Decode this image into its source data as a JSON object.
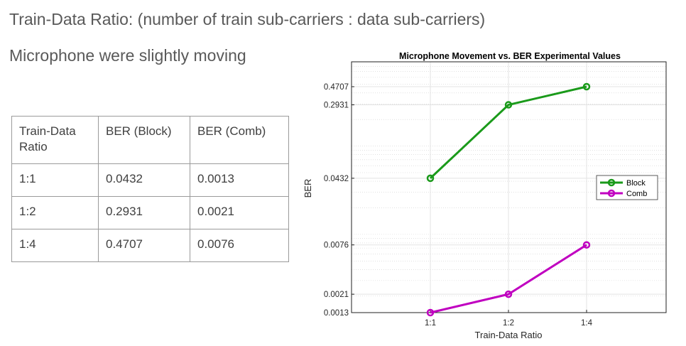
{
  "slide": {
    "title": "Train-Data Ratio: (number of train sub-carriers : data sub-carriers)",
    "subtitle": "Microphone were slightly moving"
  },
  "table": {
    "headers": [
      "Train-Data\nRatio",
      "BER (Block)",
      "BER (Comb)"
    ],
    "rows": [
      [
        "1:1",
        "0.0432",
        "0.0013"
      ],
      [
        "1:2",
        "0.2931",
        "0.0021"
      ],
      [
        "1:4",
        "0.4707",
        "0.0076"
      ]
    ]
  },
  "chart_data": {
    "type": "line",
    "title": "Microphone Movement vs. BER Experimental Values",
    "xlabel": "Train-Data Ratio",
    "ylabel": "BER",
    "categories": [
      "1:1",
      "1:2",
      "1:4"
    ],
    "y_scale": "log",
    "ylim": [
      0.0013,
      0.9
    ],
    "y_tick_labels": [
      "0.0013",
      "0.0021",
      "0.0076",
      "0.0432",
      "0.2931",
      "0.4707"
    ],
    "grid": true,
    "legend_position": "right",
    "series": [
      {
        "name": "Block",
        "color": "#1a9a1a",
        "values": [
          0.0432,
          0.2931,
          0.4707
        ]
      },
      {
        "name": "Comb",
        "color": "#c000c0",
        "values": [
          0.0013,
          0.0021,
          0.0076
        ]
      }
    ]
  }
}
